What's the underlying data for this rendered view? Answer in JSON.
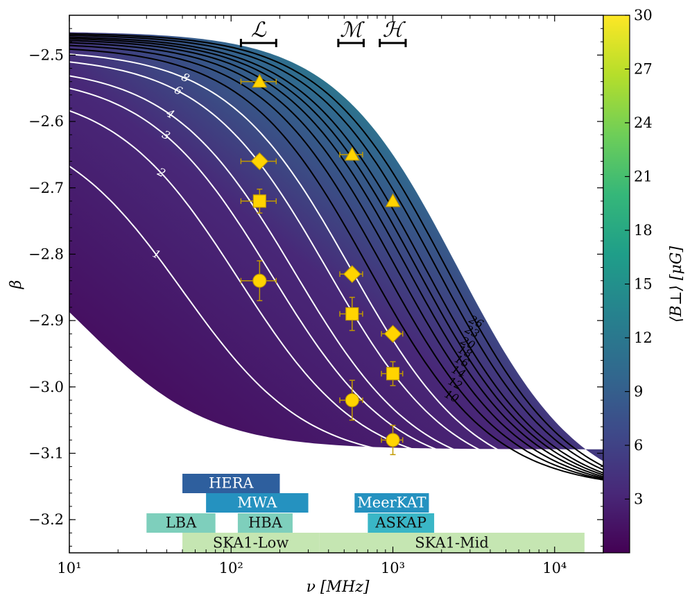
{
  "chart_data": {
    "type": "line",
    "xlabel": "ν [MHz]",
    "ylabel": "β",
    "xscale": "log",
    "xlim": [
      10,
      20000
    ],
    "ylim": [
      -3.25,
      -2.44
    ],
    "x_ticks": [
      {
        "value": 10,
        "label": "10¹"
      },
      {
        "value": 100,
        "label": "10²"
      },
      {
        "value": 1000,
        "label": "10³"
      },
      {
        "value": 10000,
        "label": "10⁴"
      }
    ],
    "y_ticks": [
      {
        "value": -2.5,
        "label": "−2.5"
      },
      {
        "value": -2.6,
        "label": "−2.6"
      },
      {
        "value": -2.7,
        "label": "−2.7"
      },
      {
        "value": -2.8,
        "label": "−2.8"
      },
      {
        "value": -2.9,
        "label": "−2.9"
      },
      {
        "value": -3.0,
        "label": "−3.0"
      },
      {
        "value": -3.1,
        "label": "−3.1"
      },
      {
        "value": -3.2,
        "label": "−3.2"
      }
    ],
    "colorbar": {
      "label": "⟨B⊥⟩ [μG]",
      "min": 0,
      "max": 30,
      "ticks": [
        {
          "value": 3,
          "label": "3"
        },
        {
          "value": 6,
          "label": "6"
        },
        {
          "value": 9,
          "label": "9"
        },
        {
          "value": 12,
          "label": "12"
        },
        {
          "value": 15,
          "label": "15"
        },
        {
          "value": 18,
          "label": "18"
        },
        {
          "value": 21,
          "label": "21"
        },
        {
          "value": 24,
          "label": "24"
        },
        {
          "value": 27,
          "label": "27"
        },
        {
          "value": 30,
          "label": "30"
        }
      ],
      "colormap": [
        "#440154",
        "#482878",
        "#3e4989",
        "#31688e",
        "#26828e",
        "#1f9e89",
        "#35b779",
        "#6ece58",
        "#b5de2b",
        "#fde725"
      ]
    },
    "contours": {
      "white": [
        {
          "B": 1,
          "label": "1"
        },
        {
          "B": 2,
          "label": "2"
        },
        {
          "B": 3,
          "label": "3"
        },
        {
          "B": 4,
          "label": "4"
        },
        {
          "B": 6,
          "label": "6"
        },
        {
          "B": 8,
          "label": "8"
        }
      ],
      "black": [
        {
          "B": 10,
          "label": "10"
        },
        {
          "B": 12,
          "label": "12"
        },
        {
          "B": 14,
          "label": "14"
        },
        {
          "B": 16,
          "label": "16"
        },
        {
          "B": 18,
          "label": "18"
        },
        {
          "B": 20,
          "label": "20"
        },
        {
          "B": 23,
          "label": "23"
        },
        {
          "B": 26,
          "label": "26"
        }
      ]
    },
    "markers": [
      {
        "shape": "triangle",
        "x": 150,
        "y": -2.54,
        "xerr": [
          35,
          40
        ],
        "yerr": 0
      },
      {
        "shape": "diamond",
        "x": 150,
        "y": -2.66,
        "xerr": [
          35,
          40
        ],
        "yerr": 0.005
      },
      {
        "shape": "square",
        "x": 150,
        "y": -2.72,
        "xerr": [
          35,
          40
        ],
        "yerr": 0.018
      },
      {
        "shape": "circle",
        "x": 150,
        "y": -2.84,
        "xerr": [
          35,
          40
        ],
        "yerr": 0.03
      },
      {
        "shape": "triangle",
        "x": 560,
        "y": -2.65,
        "xerr": [
          90,
          90
        ],
        "yerr": 0
      },
      {
        "shape": "diamond",
        "x": 560,
        "y": -2.83,
        "xerr": [
          90,
          90
        ],
        "yerr": 0.005
      },
      {
        "shape": "square",
        "x": 560,
        "y": -2.89,
        "xerr": [
          90,
          90
        ],
        "yerr": 0.025
      },
      {
        "shape": "circle",
        "x": 560,
        "y": -3.02,
        "xerr": [
          90,
          90
        ],
        "yerr": 0.03
      },
      {
        "shape": "triangle",
        "x": 1000,
        "y": -2.72,
        "xerr": [
          0,
          0
        ],
        "yerr": 0
      },
      {
        "shape": "diamond",
        "x": 1000,
        "y": -2.92,
        "xerr": [
          150,
          150
        ],
        "yerr": 0.005
      },
      {
        "shape": "square",
        "x": 1000,
        "y": -2.98,
        "xerr": [
          150,
          150
        ],
        "yerr": 0.018
      },
      {
        "shape": "circle",
        "x": 1000,
        "y": -3.08,
        "xerr": [
          150,
          150
        ],
        "yerr": 0.022
      }
    ],
    "frequency_ranges": [
      {
        "label": "ℒ",
        "min": 115,
        "max": 190
      },
      {
        "label": "ℳ",
        "min": 460,
        "max": 660
      },
      {
        "label": "ℋ",
        "min": 830,
        "max": 1200
      }
    ],
    "bands": [
      {
        "label": "HERA",
        "min": 50,
        "max": 200,
        "row": 3,
        "color": "#2e5f9e",
        "text_color": "#ffffff"
      },
      {
        "label": "MWA",
        "min": 70,
        "max": 300,
        "row": 2,
        "color": "#2592c0",
        "text_color": "#ffffff"
      },
      {
        "label": "MeerKAT",
        "min": 580,
        "max": 1670,
        "row": 2,
        "color": "#2592c0",
        "text_color": "#ffffff"
      },
      {
        "label": "LBA",
        "min": 30,
        "max": 80,
        "row": 1,
        "color": "#7ecfbc",
        "text_color": "#111111"
      },
      {
        "label": "HBA",
        "min": 110,
        "max": 240,
        "row": 1,
        "color": "#7ecfbc",
        "text_color": "#111111"
      },
      {
        "label": "ASKAP",
        "min": 700,
        "max": 1800,
        "row": 1,
        "color": "#3ab6c6",
        "text_color": "#111111"
      },
      {
        "label": "SKA1-Low",
        "min": 50,
        "max": 350,
        "row": 0,
        "color": "#c5e6b2",
        "text_color": "#111111"
      },
      {
        "label": "SKA1-Mid",
        "min": 350,
        "max": 15300,
        "row": 0,
        "color": "#c5e6b2",
        "text_color": "#111111"
      }
    ]
  }
}
